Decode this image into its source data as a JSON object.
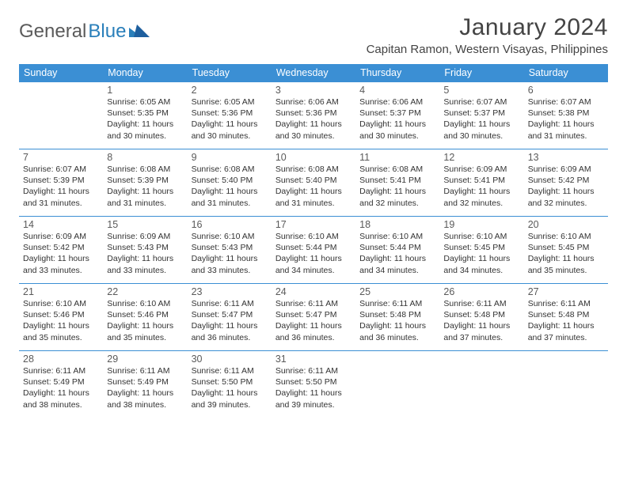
{
  "brand": {
    "part1": "General",
    "part2": "Blue"
  },
  "title": "January 2024",
  "location": "Capitan Ramon, Western Visayas, Philippines",
  "colors": {
    "header_bg": "#3b8fd4",
    "header_text": "#ffffff",
    "row_border": "#3b8fd4",
    "body_text": "#333333",
    "daynum_text": "#5a5a5a",
    "brand_gray": "#5a5a5a",
    "brand_blue": "#2a7fba",
    "page_bg": "#ffffff"
  },
  "day_headers": [
    "Sunday",
    "Monday",
    "Tuesday",
    "Wednesday",
    "Thursday",
    "Friday",
    "Saturday"
  ],
  "weeks": [
    [
      {
        "n": "",
        "sr": "",
        "ss": "",
        "d1": "",
        "d2": ""
      },
      {
        "n": "1",
        "sr": "Sunrise: 6:05 AM",
        "ss": "Sunset: 5:35 PM",
        "d1": "Daylight: 11 hours",
        "d2": "and 30 minutes."
      },
      {
        "n": "2",
        "sr": "Sunrise: 6:05 AM",
        "ss": "Sunset: 5:36 PM",
        "d1": "Daylight: 11 hours",
        "d2": "and 30 minutes."
      },
      {
        "n": "3",
        "sr": "Sunrise: 6:06 AM",
        "ss": "Sunset: 5:36 PM",
        "d1": "Daylight: 11 hours",
        "d2": "and 30 minutes."
      },
      {
        "n": "4",
        "sr": "Sunrise: 6:06 AM",
        "ss": "Sunset: 5:37 PM",
        "d1": "Daylight: 11 hours",
        "d2": "and 30 minutes."
      },
      {
        "n": "5",
        "sr": "Sunrise: 6:07 AM",
        "ss": "Sunset: 5:37 PM",
        "d1": "Daylight: 11 hours",
        "d2": "and 30 minutes."
      },
      {
        "n": "6",
        "sr": "Sunrise: 6:07 AM",
        "ss": "Sunset: 5:38 PM",
        "d1": "Daylight: 11 hours",
        "d2": "and 31 minutes."
      }
    ],
    [
      {
        "n": "7",
        "sr": "Sunrise: 6:07 AM",
        "ss": "Sunset: 5:39 PM",
        "d1": "Daylight: 11 hours",
        "d2": "and 31 minutes."
      },
      {
        "n": "8",
        "sr": "Sunrise: 6:08 AM",
        "ss": "Sunset: 5:39 PM",
        "d1": "Daylight: 11 hours",
        "d2": "and 31 minutes."
      },
      {
        "n": "9",
        "sr": "Sunrise: 6:08 AM",
        "ss": "Sunset: 5:40 PM",
        "d1": "Daylight: 11 hours",
        "d2": "and 31 minutes."
      },
      {
        "n": "10",
        "sr": "Sunrise: 6:08 AM",
        "ss": "Sunset: 5:40 PM",
        "d1": "Daylight: 11 hours",
        "d2": "and 31 minutes."
      },
      {
        "n": "11",
        "sr": "Sunrise: 6:08 AM",
        "ss": "Sunset: 5:41 PM",
        "d1": "Daylight: 11 hours",
        "d2": "and 32 minutes."
      },
      {
        "n": "12",
        "sr": "Sunrise: 6:09 AM",
        "ss": "Sunset: 5:41 PM",
        "d1": "Daylight: 11 hours",
        "d2": "and 32 minutes."
      },
      {
        "n": "13",
        "sr": "Sunrise: 6:09 AM",
        "ss": "Sunset: 5:42 PM",
        "d1": "Daylight: 11 hours",
        "d2": "and 32 minutes."
      }
    ],
    [
      {
        "n": "14",
        "sr": "Sunrise: 6:09 AM",
        "ss": "Sunset: 5:42 PM",
        "d1": "Daylight: 11 hours",
        "d2": "and 33 minutes."
      },
      {
        "n": "15",
        "sr": "Sunrise: 6:09 AM",
        "ss": "Sunset: 5:43 PM",
        "d1": "Daylight: 11 hours",
        "d2": "and 33 minutes."
      },
      {
        "n": "16",
        "sr": "Sunrise: 6:10 AM",
        "ss": "Sunset: 5:43 PM",
        "d1": "Daylight: 11 hours",
        "d2": "and 33 minutes."
      },
      {
        "n": "17",
        "sr": "Sunrise: 6:10 AM",
        "ss": "Sunset: 5:44 PM",
        "d1": "Daylight: 11 hours",
        "d2": "and 34 minutes."
      },
      {
        "n": "18",
        "sr": "Sunrise: 6:10 AM",
        "ss": "Sunset: 5:44 PM",
        "d1": "Daylight: 11 hours",
        "d2": "and 34 minutes."
      },
      {
        "n": "19",
        "sr": "Sunrise: 6:10 AM",
        "ss": "Sunset: 5:45 PM",
        "d1": "Daylight: 11 hours",
        "d2": "and 34 minutes."
      },
      {
        "n": "20",
        "sr": "Sunrise: 6:10 AM",
        "ss": "Sunset: 5:45 PM",
        "d1": "Daylight: 11 hours",
        "d2": "and 35 minutes."
      }
    ],
    [
      {
        "n": "21",
        "sr": "Sunrise: 6:10 AM",
        "ss": "Sunset: 5:46 PM",
        "d1": "Daylight: 11 hours",
        "d2": "and 35 minutes."
      },
      {
        "n": "22",
        "sr": "Sunrise: 6:10 AM",
        "ss": "Sunset: 5:46 PM",
        "d1": "Daylight: 11 hours",
        "d2": "and 35 minutes."
      },
      {
        "n": "23",
        "sr": "Sunrise: 6:11 AM",
        "ss": "Sunset: 5:47 PM",
        "d1": "Daylight: 11 hours",
        "d2": "and 36 minutes."
      },
      {
        "n": "24",
        "sr": "Sunrise: 6:11 AM",
        "ss": "Sunset: 5:47 PM",
        "d1": "Daylight: 11 hours",
        "d2": "and 36 minutes."
      },
      {
        "n": "25",
        "sr": "Sunrise: 6:11 AM",
        "ss": "Sunset: 5:48 PM",
        "d1": "Daylight: 11 hours",
        "d2": "and 36 minutes."
      },
      {
        "n": "26",
        "sr": "Sunrise: 6:11 AM",
        "ss": "Sunset: 5:48 PM",
        "d1": "Daylight: 11 hours",
        "d2": "and 37 minutes."
      },
      {
        "n": "27",
        "sr": "Sunrise: 6:11 AM",
        "ss": "Sunset: 5:48 PM",
        "d1": "Daylight: 11 hours",
        "d2": "and 37 minutes."
      }
    ],
    [
      {
        "n": "28",
        "sr": "Sunrise: 6:11 AM",
        "ss": "Sunset: 5:49 PM",
        "d1": "Daylight: 11 hours",
        "d2": "and 38 minutes."
      },
      {
        "n": "29",
        "sr": "Sunrise: 6:11 AM",
        "ss": "Sunset: 5:49 PM",
        "d1": "Daylight: 11 hours",
        "d2": "and 38 minutes."
      },
      {
        "n": "30",
        "sr": "Sunrise: 6:11 AM",
        "ss": "Sunset: 5:50 PM",
        "d1": "Daylight: 11 hours",
        "d2": "and 39 minutes."
      },
      {
        "n": "31",
        "sr": "Sunrise: 6:11 AM",
        "ss": "Sunset: 5:50 PM",
        "d1": "Daylight: 11 hours",
        "d2": "and 39 minutes."
      },
      {
        "n": "",
        "sr": "",
        "ss": "",
        "d1": "",
        "d2": ""
      },
      {
        "n": "",
        "sr": "",
        "ss": "",
        "d1": "",
        "d2": ""
      },
      {
        "n": "",
        "sr": "",
        "ss": "",
        "d1": "",
        "d2": ""
      }
    ]
  ]
}
